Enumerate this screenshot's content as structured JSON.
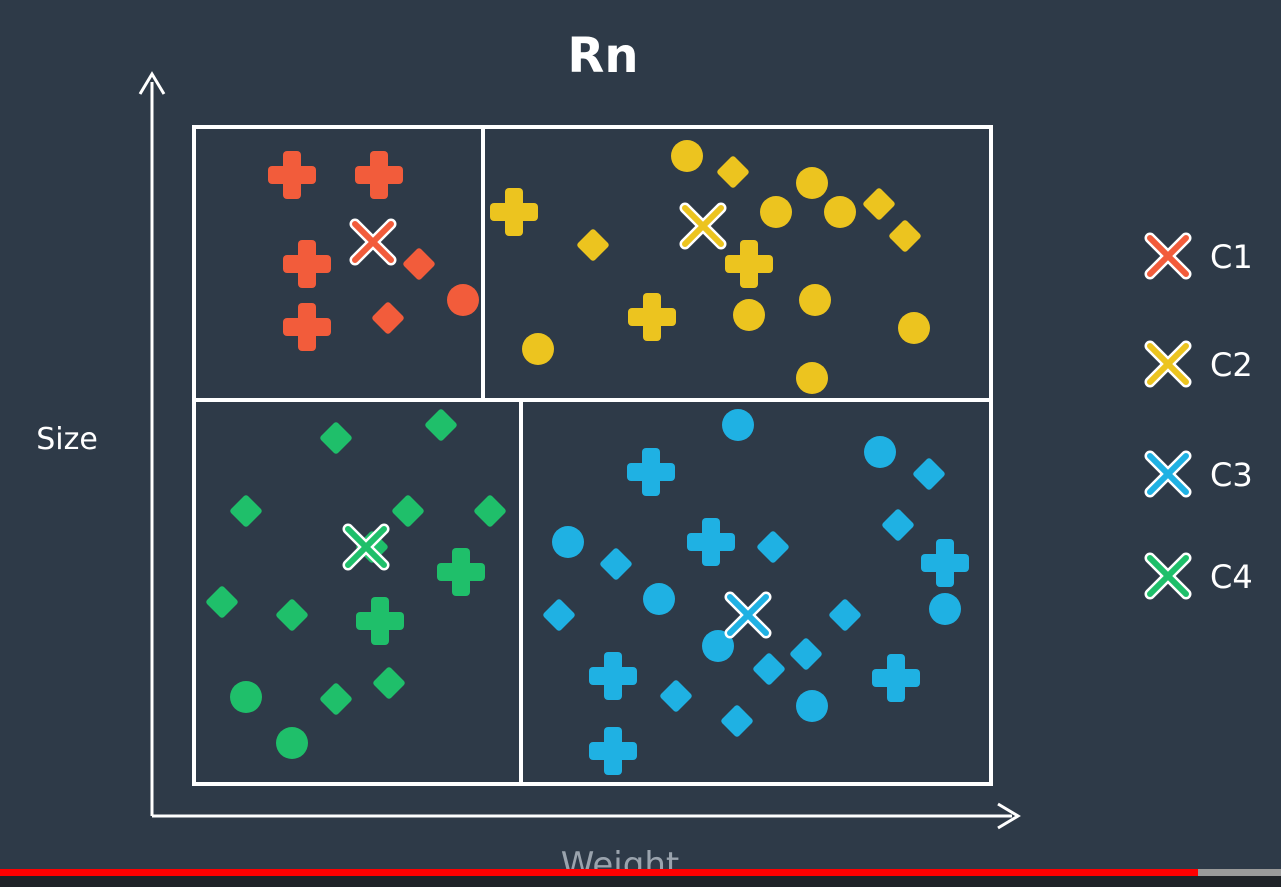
{
  "title": "Rn",
  "axes": {
    "xlabel": "Weight",
    "ylabel": "Size"
  },
  "colors": {
    "background": "#2e3a48",
    "lines": "#ffffff",
    "C1": "#f25c3b",
    "C2": "#ecc41f",
    "C3": "#1fb1e3",
    "C4": "#1fbf6a"
  },
  "legend": [
    {
      "label": "C1",
      "color": "#f25c3b",
      "icon": "x-icon"
    },
    {
      "label": "C2",
      "color": "#ecc41f",
      "icon": "x-icon"
    },
    {
      "label": "C3",
      "color": "#1fb1e3",
      "icon": "x-icon"
    },
    {
      "label": "C4",
      "color": "#1fbf6a",
      "icon": "x-icon"
    }
  ],
  "player": {
    "progress": 0.935
  }
}
